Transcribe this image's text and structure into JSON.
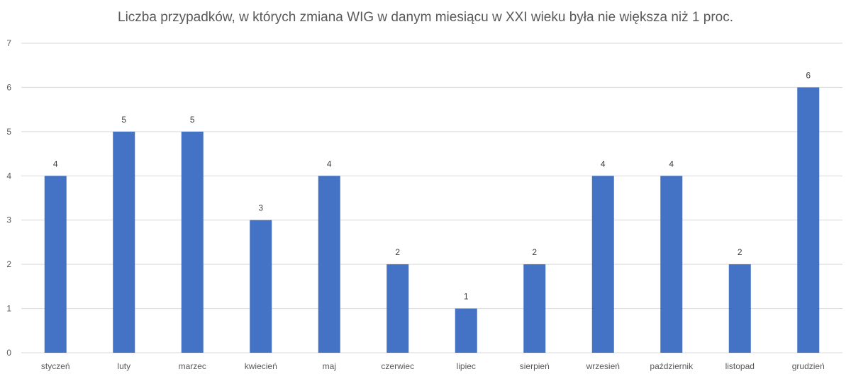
{
  "chart_data": {
    "type": "bar",
    "title": "Liczba przypadków, w których zmiana WIG w danym miesiącu w XXI wieku była nie większa niż 1 proc.",
    "xlabel": "",
    "ylabel": "",
    "categories": [
      "styczeń",
      "luty",
      "marzec",
      "kwiecień",
      "maj",
      "czerwiec",
      "lipiec",
      "sierpień",
      "wrzesień",
      "październik",
      "listopad",
      "grudzień"
    ],
    "values": [
      4,
      5,
      5,
      3,
      4,
      2,
      1,
      2,
      4,
      4,
      2,
      6
    ],
    "ylim": [
      0,
      7
    ],
    "yticks": [
      0,
      1,
      2,
      3,
      4,
      5,
      6,
      7
    ],
    "grid": true,
    "data_labels": true,
    "bar_color": "#4472C4",
    "grid_color": "#D9D9D9"
  }
}
